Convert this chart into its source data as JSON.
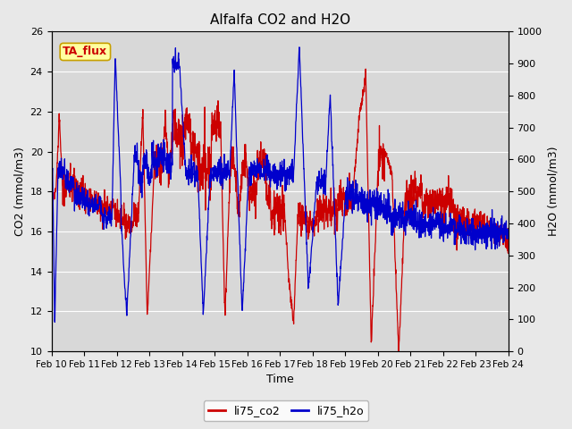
{
  "title": "Alfalfa CO2 and H2O",
  "xlabel": "Time",
  "ylabel_left": "CO2 (mmol/m3)",
  "ylabel_right": "H2O (mmol/m3)",
  "annotation": "TA_flux",
  "ylim_left": [
    10,
    26
  ],
  "ylim_right": [
    0,
    1000
  ],
  "yticks_left": [
    10,
    12,
    14,
    16,
    18,
    20,
    22,
    24,
    26
  ],
  "yticks_right": [
    0,
    100,
    200,
    300,
    400,
    500,
    600,
    700,
    800,
    900,
    1000
  ],
  "xtick_labels": [
    "Feb 10",
    "Feb 11",
    "Feb 12",
    "Feb 13",
    "Feb 14",
    "Feb 15",
    "Feb 16",
    "Feb 17",
    "Feb 18",
    "Feb 19",
    "Feb 20",
    "Feb 21",
    "Feb 22",
    "Feb 23",
    "Feb 24"
  ],
  "co2_color": "#CC0000",
  "h2o_color": "#0000CC",
  "fig_bg_color": "#E8E8E8",
  "plot_bg_color": "#D8D8D8",
  "grid_color": "#FFFFFF",
  "legend_label_co2": "li75_co2",
  "legend_label_h2o": "li75_h2o",
  "annotation_bg": "#FFFFA0",
  "annotation_border": "#C8A000",
  "linewidth_co2": 0.9,
  "linewidth_h2o": 0.9
}
